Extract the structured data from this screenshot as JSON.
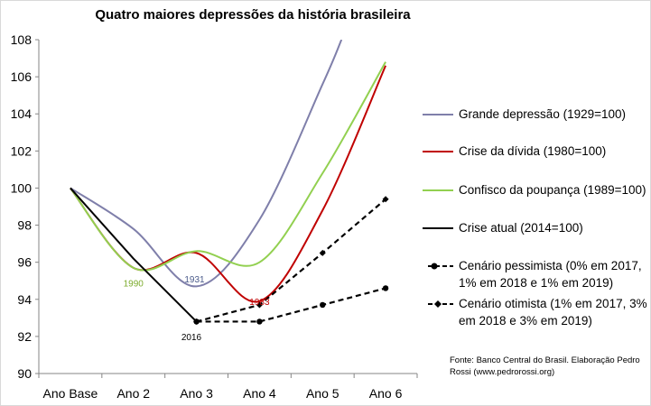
{
  "chart_data": {
    "type": "line",
    "title": "Quatro maiores depressões da história brasileira",
    "categories": [
      "Ano Base",
      "Ano 2",
      "Ano 3",
      "Ano 4",
      "Ano 5",
      "Ano 6"
    ],
    "ylim": [
      90,
      108
    ],
    "yticks": [
      "90",
      "92",
      "94",
      "96",
      "98",
      "100",
      "102",
      "104",
      "106",
      "108"
    ],
    "grid": false,
    "legend_position": "right",
    "series": [
      {
        "name": "Grande depressão (1929=100)",
        "color": "#7f7faa",
        "style": "smooth",
        "x": [
          0,
          1,
          2,
          3,
          4,
          4.3
        ],
        "values": [
          100,
          97.8,
          94.7,
          98.3,
          105.6,
          108
        ]
      },
      {
        "name": "Crise da dívida (1980=100)",
        "color": "#c00000",
        "style": "smooth",
        "x": [
          0,
          1,
          2,
          3,
          4,
          5
        ],
        "values": [
          100,
          95.7,
          96.5,
          93.9,
          98.8,
          106.6
        ]
      },
      {
        "name": "Confisco da poupança (1989=100)",
        "color": "#92d050",
        "style": "smooth",
        "x": [
          0,
          1,
          2,
          3,
          4,
          5
        ],
        "values": [
          100,
          95.7,
          96.6,
          96.0,
          100.8,
          106.8
        ]
      },
      {
        "name": "Crise atual (2014=100)",
        "color": "#000000",
        "style": "straight",
        "x": [
          0,
          1,
          2
        ],
        "values": [
          100,
          96.2,
          92.8
        ]
      },
      {
        "name": "Cenário pessimista (0% em 2017, 1% em 2018 e 1% em 2019)",
        "color": "#000000",
        "style": "dashed",
        "marker": "circle",
        "x": [
          2,
          3,
          4,
          5
        ],
        "values": [
          92.8,
          92.8,
          93.7,
          94.6
        ]
      },
      {
        "name": "Cenário otimista (1% em 2017, 3% em 2018 e 3% em 2019)",
        "color": "#000000",
        "style": "dashed",
        "marker": "diamond",
        "x": [
          2,
          3,
          4,
          5
        ],
        "values": [
          92.8,
          93.7,
          96.5,
          99.4
        ]
      }
    ],
    "annotations": [
      {
        "text": "1990",
        "color": "#7cab2c",
        "x": 1.0,
        "y": 94.9
      },
      {
        "text": "1931",
        "color": "#4a5a8a",
        "x": 1.97,
        "y": 95.1
      },
      {
        "text": "1983",
        "color": "#c00000",
        "x": 3.0,
        "y": 93.9
      },
      {
        "text": "2016",
        "color": "#000000",
        "x": 1.92,
        "y": 92.0
      }
    ]
  },
  "legend": [
    {
      "label": "Grande depressão (1929=100)",
      "color": "#7f7faa",
      "kind": "solid"
    },
    {
      "label": "Crise da dívida (1980=100)",
      "color": "#c00000",
      "kind": "solid"
    },
    {
      "label": "Confisco da poupança (1989=100)",
      "color": "#92d050",
      "kind": "solid"
    },
    {
      "label": "Crise atual (2014=100)",
      "color": "#000000",
      "kind": "solid"
    },
    {
      "label": "Cenário pessimista (0% em 2017, 1% em 2018 e 1% em 2019)",
      "color": "#000000",
      "kind": "dashed-circle"
    },
    {
      "label": "Cenário otimista (1% em 2017, 3% em 2018 e 3% em 2019)",
      "color": "#000000",
      "kind": "dashed-diamond"
    }
  ],
  "source": "Fonte: Banco Central do Brasil. Elaboração Pedro Rossi (www.pedrorossi.org)"
}
